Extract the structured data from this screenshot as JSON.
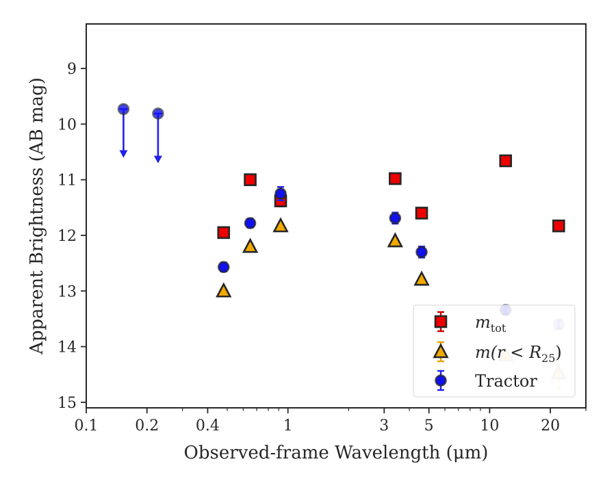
{
  "chart_data": {
    "type": "scatter",
    "xlabel": "Observed-frame Wavelength (μm)",
    "ylabel": "Apparent Brightness (AB mag)",
    "x_scale": "log",
    "xlim": [
      0.1,
      30
    ],
    "ylim": [
      15.1,
      8.2
    ],
    "y_inverted": true,
    "grid": false,
    "x_ticks": [
      {
        "value": 0.1,
        "label": "0.1"
      },
      {
        "value": 0.2,
        "label": "0.2"
      },
      {
        "value": 0.4,
        "label": "0.4"
      },
      {
        "value": 1,
        "label": "1"
      },
      {
        "value": 3,
        "label": "3"
      },
      {
        "value": 5,
        "label": "5"
      },
      {
        "value": 10,
        "label": "10"
      },
      {
        "value": 20,
        "label": "20"
      }
    ],
    "y_ticks": [
      9,
      10,
      11,
      12,
      13,
      14,
      15
    ],
    "legend": {
      "placement": "lower-right",
      "entries": [
        {
          "series": "m_tot",
          "label_main": "m",
          "label_sub": "tot",
          "label_tail": ""
        },
        {
          "series": "m_r25",
          "label_main": "m(r < R",
          "label_sub": "25",
          "label_tail": ")"
        },
        {
          "series": "tractor",
          "label_main": "Tractor",
          "label_sub": "",
          "label_tail": ""
        }
      ]
    },
    "series": [
      {
        "key": "m_tot",
        "marker": "square",
        "fill": "#ee0000",
        "edge": "#262626",
        "errcolor": "#cc0000",
        "points": [
          {
            "x": 0.48,
            "y": 11.95,
            "err": 0.05
          },
          {
            "x": 0.65,
            "y": 11.0,
            "err": 0.05
          },
          {
            "x": 0.92,
            "y": 11.38,
            "err": 0.1
          },
          {
            "x": 3.4,
            "y": 10.98,
            "err": 0.05
          },
          {
            "x": 4.6,
            "y": 11.6,
            "err": 0.08
          },
          {
            "x": 12.0,
            "y": 10.66,
            "err": 0.05
          },
          {
            "x": 22.0,
            "y": 11.83,
            "err": 0.08
          }
        ]
      },
      {
        "key": "m_r25",
        "marker": "triangle",
        "fill": "#f2a900",
        "edge": "#262626",
        "errcolor": "#e8a200",
        "points": [
          {
            "x": 0.48,
            "y": 13.0,
            "err": 0.04,
            "alpha": 1
          },
          {
            "x": 0.65,
            "y": 12.2,
            "err": 0.04,
            "alpha": 1
          },
          {
            "x": 0.92,
            "y": 11.83,
            "err": 0.04,
            "alpha": 1
          },
          {
            "x": 3.4,
            "y": 12.1,
            "err": 0.04,
            "alpha": 1
          },
          {
            "x": 4.6,
            "y": 12.79,
            "err": 0.04,
            "alpha": 1
          },
          {
            "x": 12.0,
            "y": 14.15,
            "err": 0.06,
            "alpha": 0.25
          },
          {
            "x": 22.0,
            "y": 14.47,
            "err": 0.3,
            "alpha": 0.25
          }
        ]
      },
      {
        "key": "tractor",
        "marker": "circle",
        "fill": "#1010ee",
        "edge": "#262626",
        "errcolor": "#2020ee",
        "points": [
          {
            "x": 0.153,
            "y": 9.73,
            "upper_limit": true,
            "limit_to": 10.58,
            "alpha": 1
          },
          {
            "x": 0.227,
            "y": 9.81,
            "upper_limit": true,
            "limit_to": 10.68,
            "alpha": 1
          },
          {
            "x": 0.48,
            "y": 12.57,
            "err": 0.08,
            "alpha": 1
          },
          {
            "x": 0.65,
            "y": 11.78,
            "err": 0.08,
            "alpha": 1
          },
          {
            "x": 0.92,
            "y": 11.25,
            "err": 0.12,
            "alpha": 1
          },
          {
            "x": 3.4,
            "y": 11.69,
            "err": 0.1,
            "alpha": 1
          },
          {
            "x": 4.6,
            "y": 12.3,
            "err": 0.1,
            "alpha": 1
          },
          {
            "x": 12.0,
            "y": 13.34,
            "err": 0.08,
            "alpha": 0.7
          },
          {
            "x": 22.0,
            "y": 13.6,
            "err": 0.08,
            "alpha": 0.25
          }
        ]
      }
    ]
  }
}
